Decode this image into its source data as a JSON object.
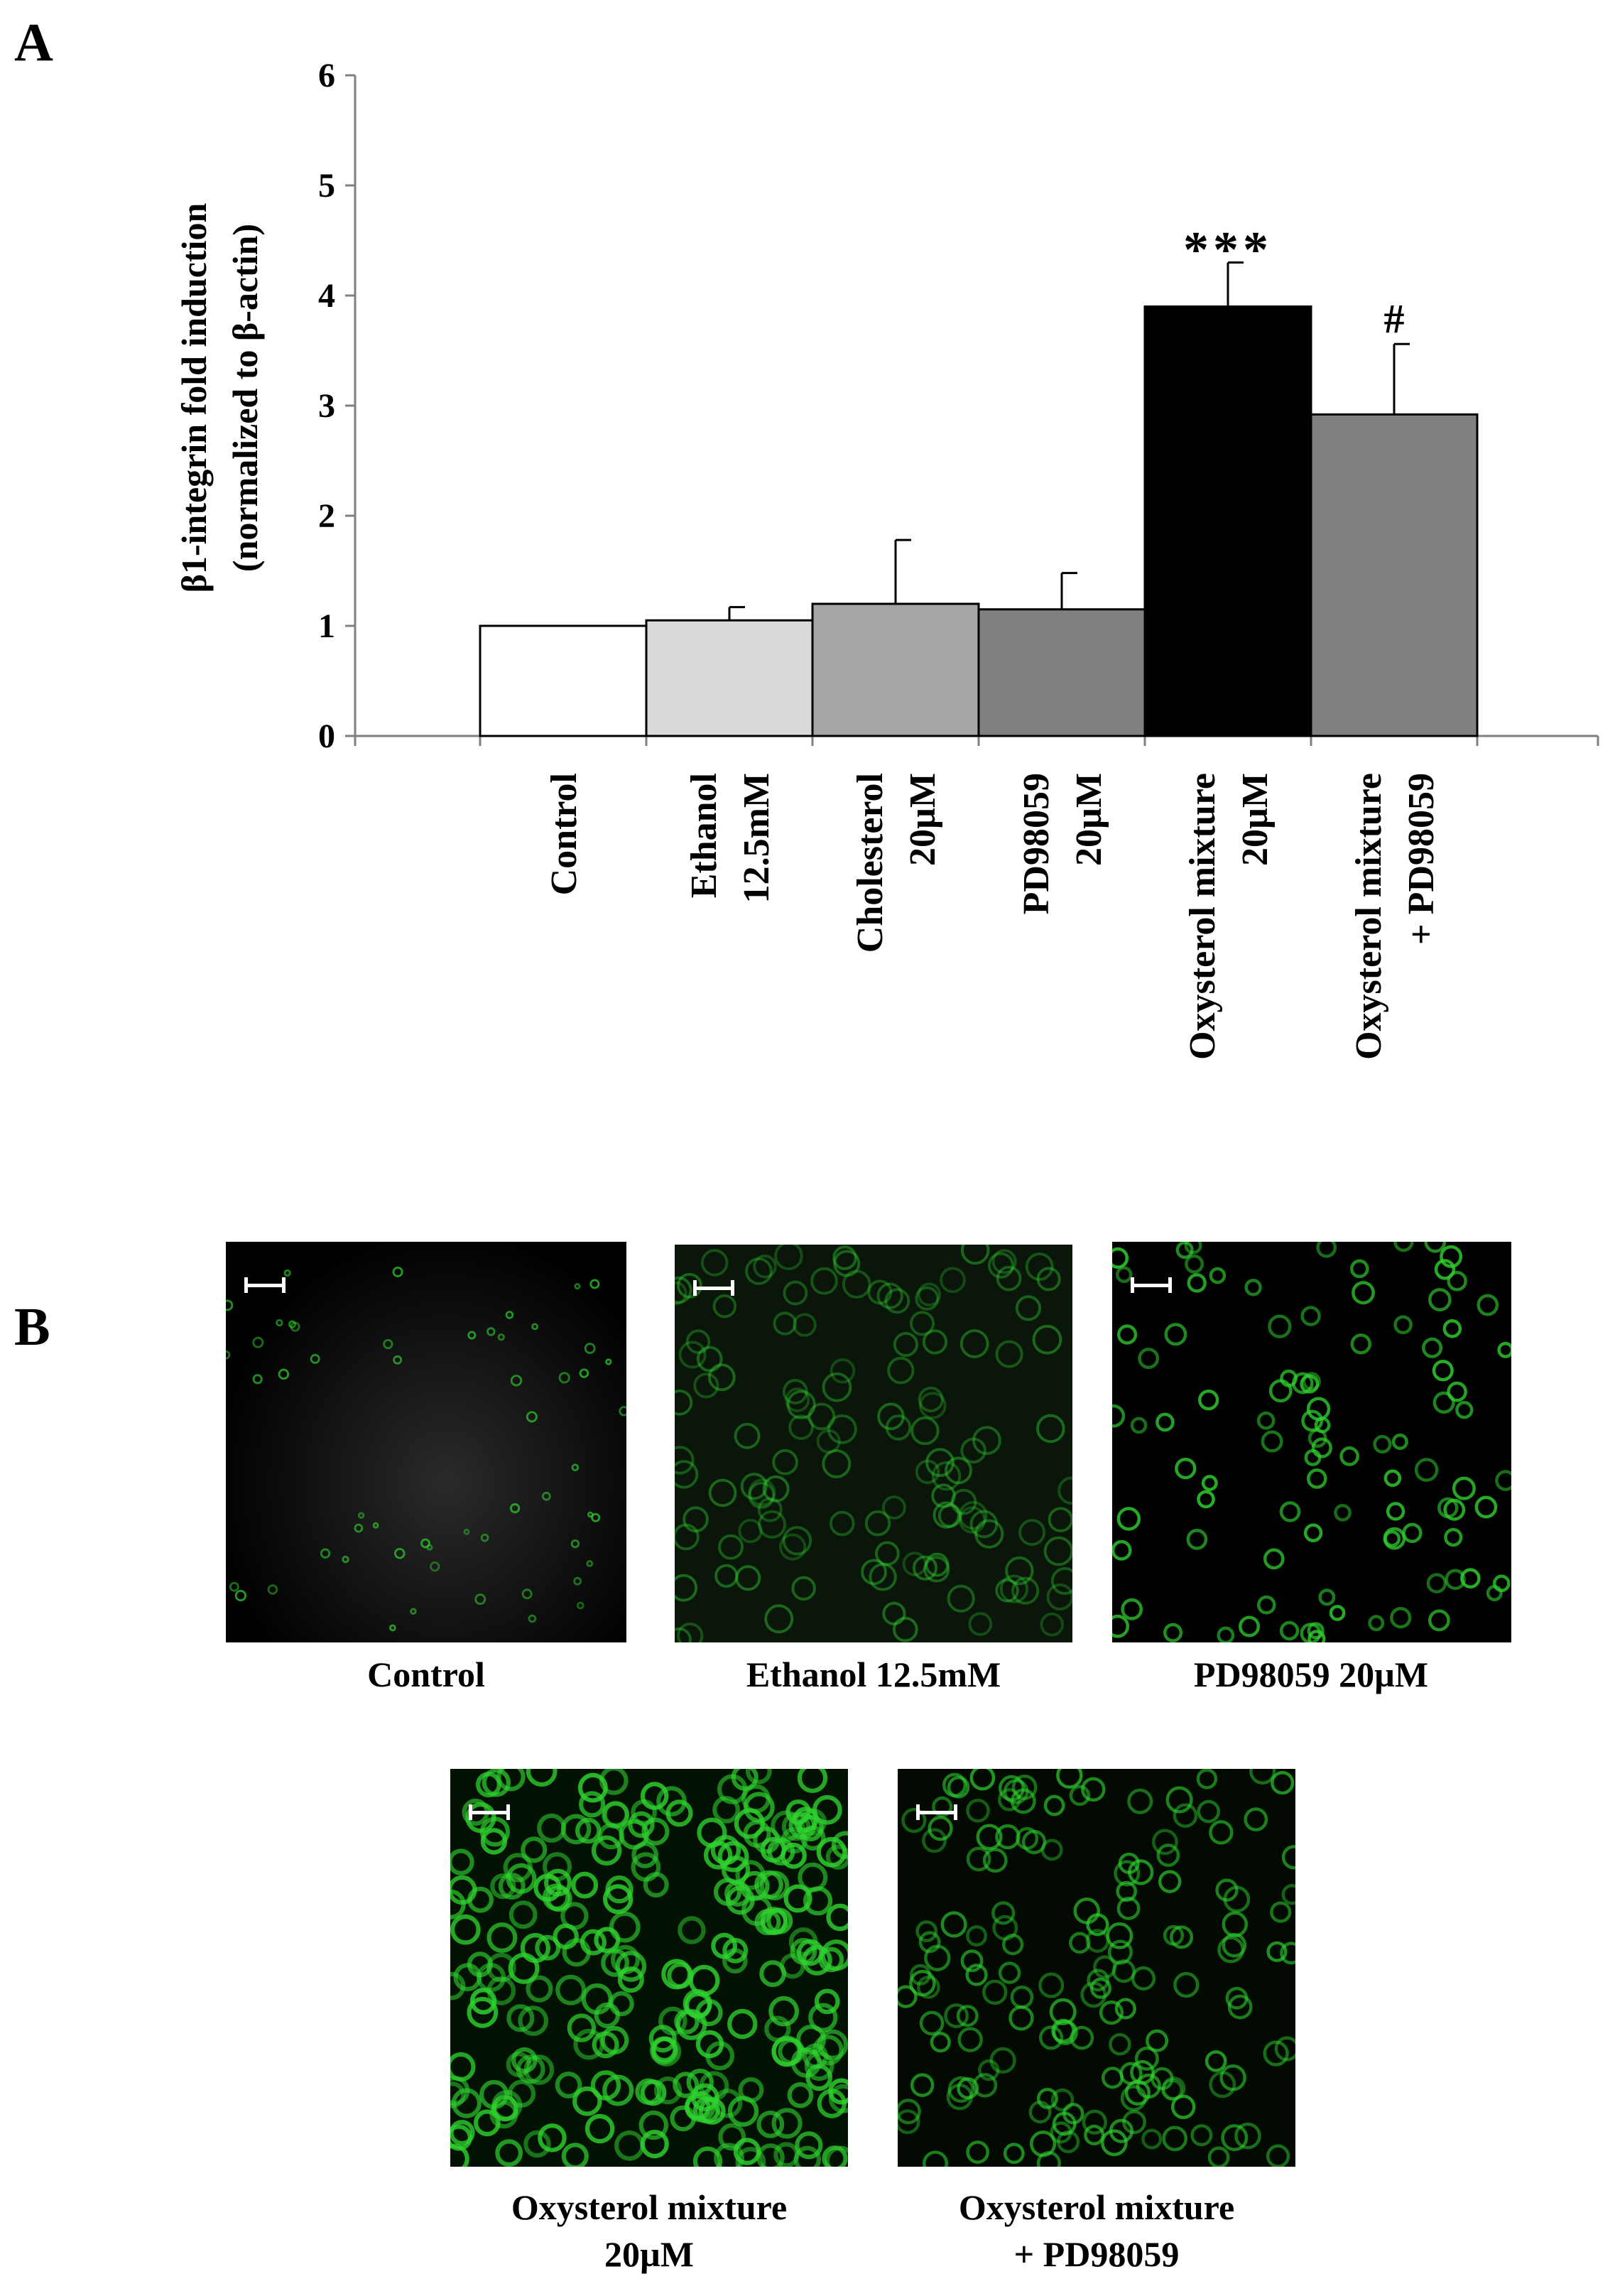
{
  "panel_a_letter": "A",
  "panel_b_letter": "B",
  "chart_data": {
    "type": "bar",
    "categories": [
      "Control",
      "Ethanol 12.5mM",
      "Cholesterol 20µM",
      "PD98059 20µM",
      "Oxysterol mixture 20µM",
      "Oxysterol mixture + PD98059"
    ],
    "category_lines": [
      [
        "Control"
      ],
      [
        "Ethanol",
        "12.5mM"
      ],
      [
        "Cholesterol",
        "20µM"
      ],
      [
        "PD98059",
        "20µM"
      ],
      [
        "Oxysterol mixture",
        "20µM"
      ],
      [
        "Oxysterol mixture",
        "+ PD98059"
      ]
    ],
    "values": [
      1.0,
      1.05,
      1.2,
      1.15,
      3.9,
      2.92
    ],
    "error_plus": [
      0.0,
      0.12,
      0.58,
      0.33,
      0.4,
      0.64
    ],
    "annotations": [
      "",
      "",
      "",
      "",
      "***",
      "#"
    ],
    "bar_colors": [
      "#ffffff",
      "#d9d9d9",
      "#a6a6a6",
      "#808080",
      "#000000",
      "#808080"
    ],
    "ylabel_lines": [
      "β1-integrin fold induction",
      "(normalized to β-actin)"
    ],
    "ylim": [
      0,
      6
    ],
    "yticks": [
      0,
      1,
      2,
      3,
      4,
      5,
      6
    ],
    "grid": false
  },
  "micrographs": [
    {
      "caption_lines": [
        "Control"
      ],
      "intensity": "low"
    },
    {
      "caption_lines": [
        "Ethanol 12.5mM"
      ],
      "intensity": "medium-dim"
    },
    {
      "caption_lines": [
        "PD98059 20µM"
      ],
      "intensity": "medium"
    },
    {
      "caption_lines": [
        "Oxysterol mixture",
        "20µM"
      ],
      "intensity": "high"
    },
    {
      "caption_lines": [
        "Oxysterol mixture",
        "+ PD98059"
      ],
      "intensity": "medium-high"
    }
  ],
  "colors": {
    "fluorescence": "#2fd12f",
    "background": "#000000"
  }
}
